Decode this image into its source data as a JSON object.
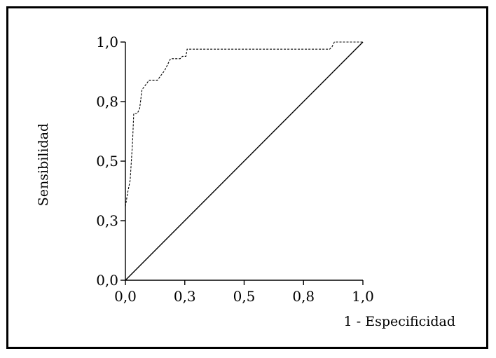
{
  "chart_data": {
    "type": "line",
    "title": "",
    "xlabel": "1 - Especificidad",
    "ylabel": "Sensibilidad",
    "xlim": [
      0,
      1
    ],
    "ylim": [
      0,
      1
    ],
    "x_ticks": [
      0.0,
      0.25,
      0.5,
      0.75,
      1.0
    ],
    "x_tick_labels": [
      "0,0",
      "0,3",
      "0,5",
      "0,8",
      "1,0"
    ],
    "y_ticks": [
      0.0,
      0.25,
      0.5,
      0.75,
      1.0
    ],
    "y_tick_labels": [
      "0,0",
      "0,3",
      "0,5",
      "0,8",
      "1,0"
    ],
    "grid": false,
    "legend": "none",
    "series": [
      {
        "style": "dashed",
        "x": [
          0.0,
          0.01,
          0.02,
          0.025,
          0.03,
          0.035,
          0.05,
          0.06,
          0.07,
          0.085,
          0.1,
          0.115,
          0.12,
          0.135,
          0.15,
          0.165,
          0.17,
          0.18,
          0.19,
          0.2,
          0.21,
          0.215,
          0.22,
          0.225,
          0.23,
          0.24,
          0.25,
          0.255,
          0.26,
          0.27,
          0.3,
          0.4,
          0.5,
          0.6,
          0.7,
          0.8,
          0.86,
          0.87,
          0.88,
          0.9,
          1.0
        ],
        "y": [
          0.31,
          0.37,
          0.42,
          0.5,
          0.58,
          0.7,
          0.7,
          0.72,
          0.8,
          0.82,
          0.84,
          0.84,
          0.84,
          0.84,
          0.86,
          0.88,
          0.89,
          0.91,
          0.93,
          0.93,
          0.93,
          0.93,
          0.93,
          0.93,
          0.93,
          0.94,
          0.94,
          0.94,
          0.97,
          0.97,
          0.97,
          0.97,
          0.97,
          0.97,
          0.97,
          0.97,
          0.97,
          0.98,
          1.0,
          1.0,
          1.0
        ]
      },
      {
        "style": "solid",
        "x": [
          0.0,
          1.0
        ],
        "y": [
          0.0,
          1.0
        ]
      }
    ]
  },
  "colors": {
    "ink": "#000000",
    "background": "#ffffff"
  }
}
